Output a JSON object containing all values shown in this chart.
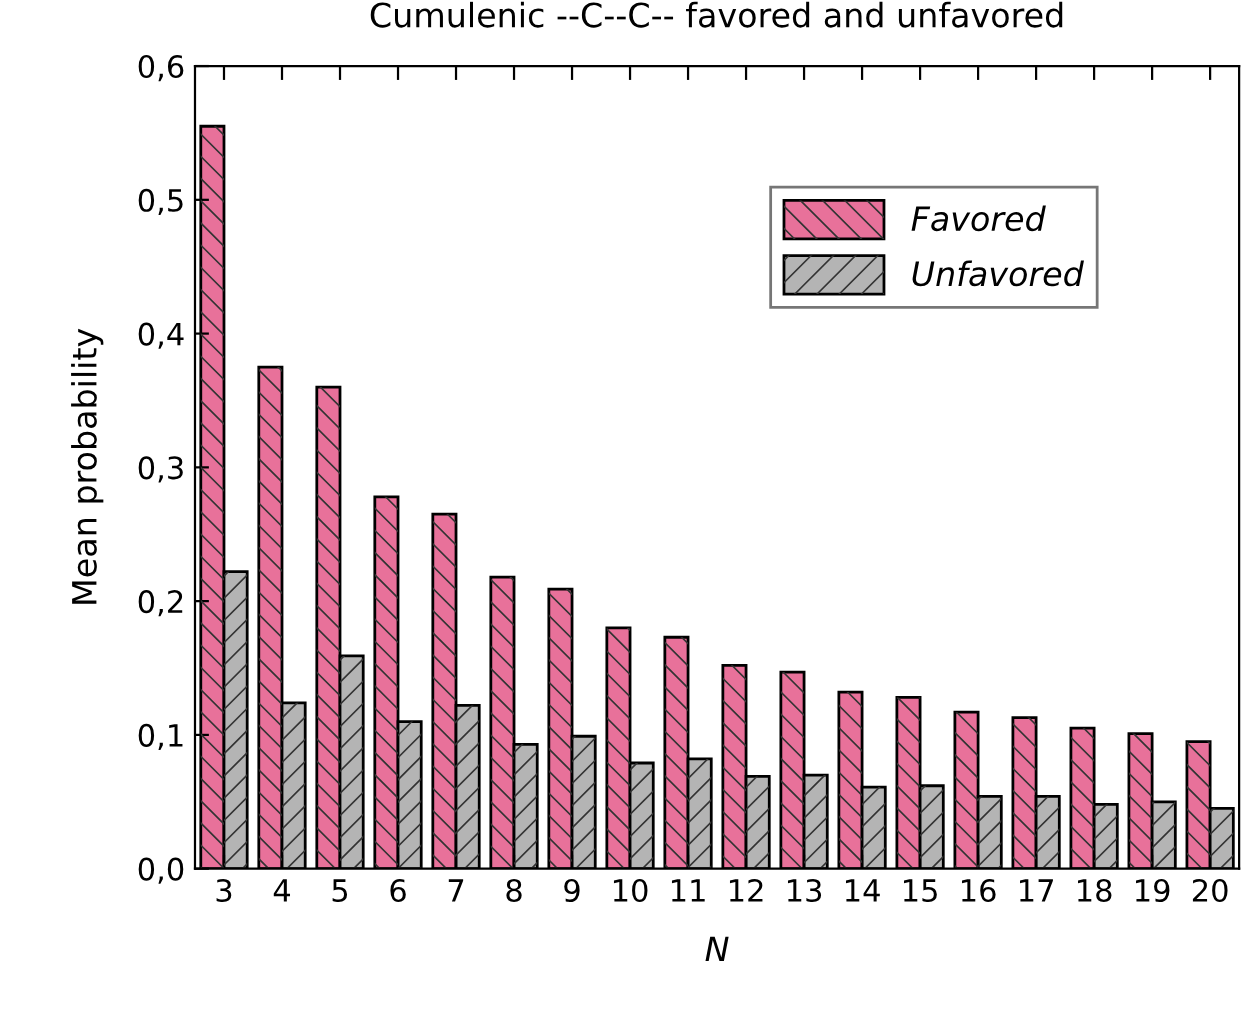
{
  "chart_data": {
    "type": "bar",
    "title": "Cumulenic --C--C-- favored and unfavored",
    "xlabel": "N",
    "ylabel": "Mean probability",
    "categories": [
      "3",
      "4",
      "5",
      "6",
      "7",
      "8",
      "9",
      "10",
      "11",
      "12",
      "13",
      "14",
      "15",
      "16",
      "17",
      "18",
      "19",
      "20"
    ],
    "series": [
      {
        "name": "Favored",
        "color": "#e8719a",
        "values": [
          0.555,
          0.375,
          0.36,
          0.278,
          0.265,
          0.218,
          0.209,
          0.18,
          0.173,
          0.152,
          0.147,
          0.132,
          0.128,
          0.117,
          0.113,
          0.105,
          0.101,
          0.095
        ]
      },
      {
        "name": "Unfavored",
        "color": "#b4b4b4",
        "values": [
          0.222,
          0.124,
          0.159,
          0.11,
          0.122,
          0.093,
          0.099,
          0.079,
          0.082,
          0.069,
          0.07,
          0.061,
          0.062,
          0.054,
          0.054,
          0.048,
          0.05,
          0.045
        ]
      }
    ],
    "ylim": [
      0,
      0.6
    ],
    "yticks": [
      {
        "value": 0,
        "label": "0,0"
      },
      {
        "value": 0.1,
        "label": "0,1"
      },
      {
        "value": 0.2,
        "label": "0,2"
      },
      {
        "value": 0.3,
        "label": "0,3"
      },
      {
        "value": 0.4,
        "label": "0,4"
      },
      {
        "value": 0.5,
        "label": "0,5"
      },
      {
        "value": 0.6,
        "label": "0,6"
      }
    ],
    "grid": false,
    "legend": "top right"
  }
}
